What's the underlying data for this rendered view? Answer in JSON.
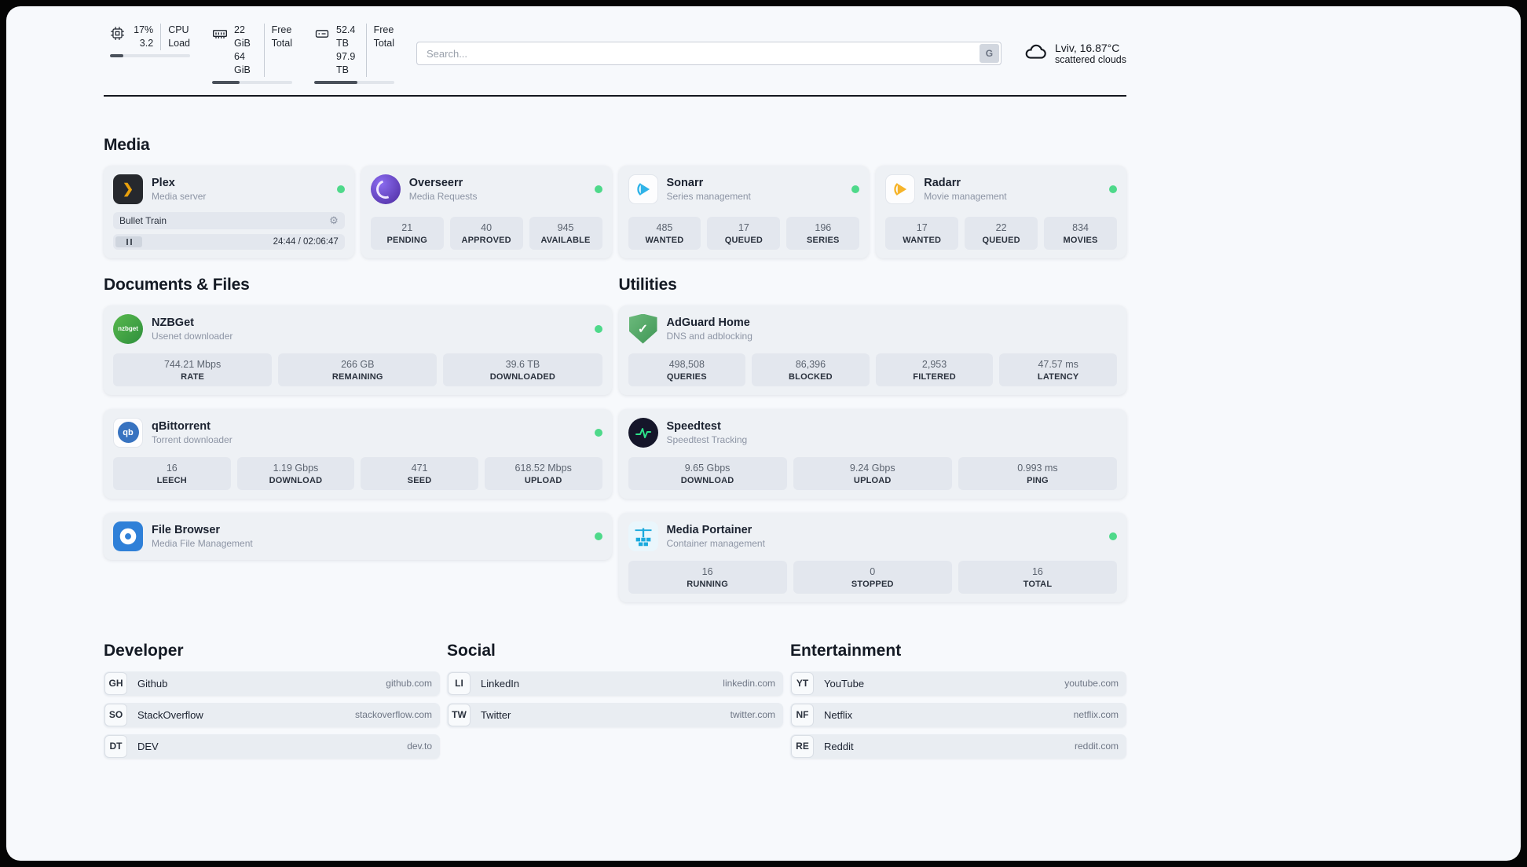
{
  "header": {
    "cpu": {
      "value": "17%",
      "value2": "3.2",
      "label1": "CPU",
      "label2": "Load",
      "progress": 17
    },
    "ram": {
      "value": "22 GiB",
      "value2": "64 GiB",
      "label1": "Free",
      "label2": "Total",
      "progress": 34
    },
    "disk": {
      "value": "52.4 TB",
      "value2": "97.9 TB",
      "label1": "Free",
      "label2": "Total",
      "progress": 54
    },
    "search": {
      "placeholder": "Search...",
      "engine_label": "G"
    },
    "weather": {
      "location": "Lviv, 16.87°C",
      "condition": "scattered clouds"
    }
  },
  "media": {
    "title": "Media",
    "plex": {
      "name": "Plex",
      "desc": "Media server",
      "track": "Bullet Train",
      "time": "24:44 / 02:06:47"
    },
    "overseerr": {
      "name": "Overseerr",
      "desc": "Media Requests",
      "stats": [
        {
          "value": "21",
          "label": "PENDING"
        },
        {
          "value": "40",
          "label": "APPROVED"
        },
        {
          "value": "945",
          "label": "AVAILABLE"
        }
      ]
    },
    "sonarr": {
      "name": "Sonarr",
      "desc": "Series management",
      "stats": [
        {
          "value": "485",
          "label": "WANTED"
        },
        {
          "value": "17",
          "label": "QUEUED"
        },
        {
          "value": "196",
          "label": "SERIES"
        }
      ]
    },
    "radarr": {
      "name": "Radarr",
      "desc": "Movie management",
      "stats": [
        {
          "value": "17",
          "label": "WANTED"
        },
        {
          "value": "22",
          "label": "QUEUED"
        },
        {
          "value": "834",
          "label": "MOVIES"
        }
      ]
    }
  },
  "documents": {
    "title": "Documents & Files",
    "nzbget": {
      "name": "NZBGet",
      "desc": "Usenet downloader",
      "stats": [
        {
          "value": "744.21 Mbps",
          "label": "RATE"
        },
        {
          "value": "266 GB",
          "label": "REMAINING"
        },
        {
          "value": "39.6 TB",
          "label": "DOWNLOADED"
        }
      ]
    },
    "qbittorrent": {
      "name": "qBittorrent",
      "desc": "Torrent downloader",
      "stats": [
        {
          "value": "16",
          "label": "LEECH"
        },
        {
          "value": "1.19 Gbps",
          "label": "DOWNLOAD"
        },
        {
          "value": "471",
          "label": "SEED"
        },
        {
          "value": "618.52 Mbps",
          "label": "UPLOAD"
        }
      ]
    },
    "filebrowser": {
      "name": "File Browser",
      "desc": "Media File Management"
    }
  },
  "utilities": {
    "title": "Utilities",
    "adguard": {
      "name": "AdGuard Home",
      "desc": "DNS and adblocking",
      "stats": [
        {
          "value": "498,508",
          "label": "QUERIES"
        },
        {
          "value": "86,396",
          "label": "BLOCKED"
        },
        {
          "value": "2,953",
          "label": "FILTERED"
        },
        {
          "value": "47.57 ms",
          "label": "LATENCY"
        }
      ]
    },
    "speedtest": {
      "name": "Speedtest",
      "desc": "Speedtest Tracking",
      "stats": [
        {
          "value": "9.65 Gbps",
          "label": "DOWNLOAD"
        },
        {
          "value": "9.24 Gbps",
          "label": "UPLOAD"
        },
        {
          "value": "0.993 ms",
          "label": "PING"
        }
      ]
    },
    "portainer": {
      "name": "Media Portainer",
      "desc": "Container management",
      "stats": [
        {
          "value": "16",
          "label": "RUNNING"
        },
        {
          "value": "0",
          "label": "STOPPED"
        },
        {
          "value": "16",
          "label": "TOTAL"
        }
      ]
    }
  },
  "bookmarks": {
    "developer": {
      "title": "Developer",
      "items": [
        {
          "abbr": "GH",
          "name": "Github",
          "url": "github.com"
        },
        {
          "abbr": "SO",
          "name": "StackOverflow",
          "url": "stackoverflow.com"
        },
        {
          "abbr": "DT",
          "name": "DEV",
          "url": "dev.to"
        }
      ]
    },
    "social": {
      "title": "Social",
      "items": [
        {
          "abbr": "LI",
          "name": "LinkedIn",
          "url": "linkedin.com"
        },
        {
          "abbr": "TW",
          "name": "Twitter",
          "url": "twitter.com"
        }
      ]
    },
    "entertainment": {
      "title": "Entertainment",
      "items": [
        {
          "abbr": "YT",
          "name": "YouTube",
          "url": "youtube.com"
        },
        {
          "abbr": "NF",
          "name": "Netflix",
          "url": "netflix.com"
        },
        {
          "abbr": "RE",
          "name": "Reddit",
          "url": "reddit.com"
        }
      ]
    }
  },
  "icons": {
    "plex_glyph": "❯",
    "gear": "⚙",
    "nzbget_label": "nzbget",
    "qb_label": "qb",
    "adguard_glyph": "✓"
  },
  "colors": {
    "status_online": "#4ed98a"
  }
}
